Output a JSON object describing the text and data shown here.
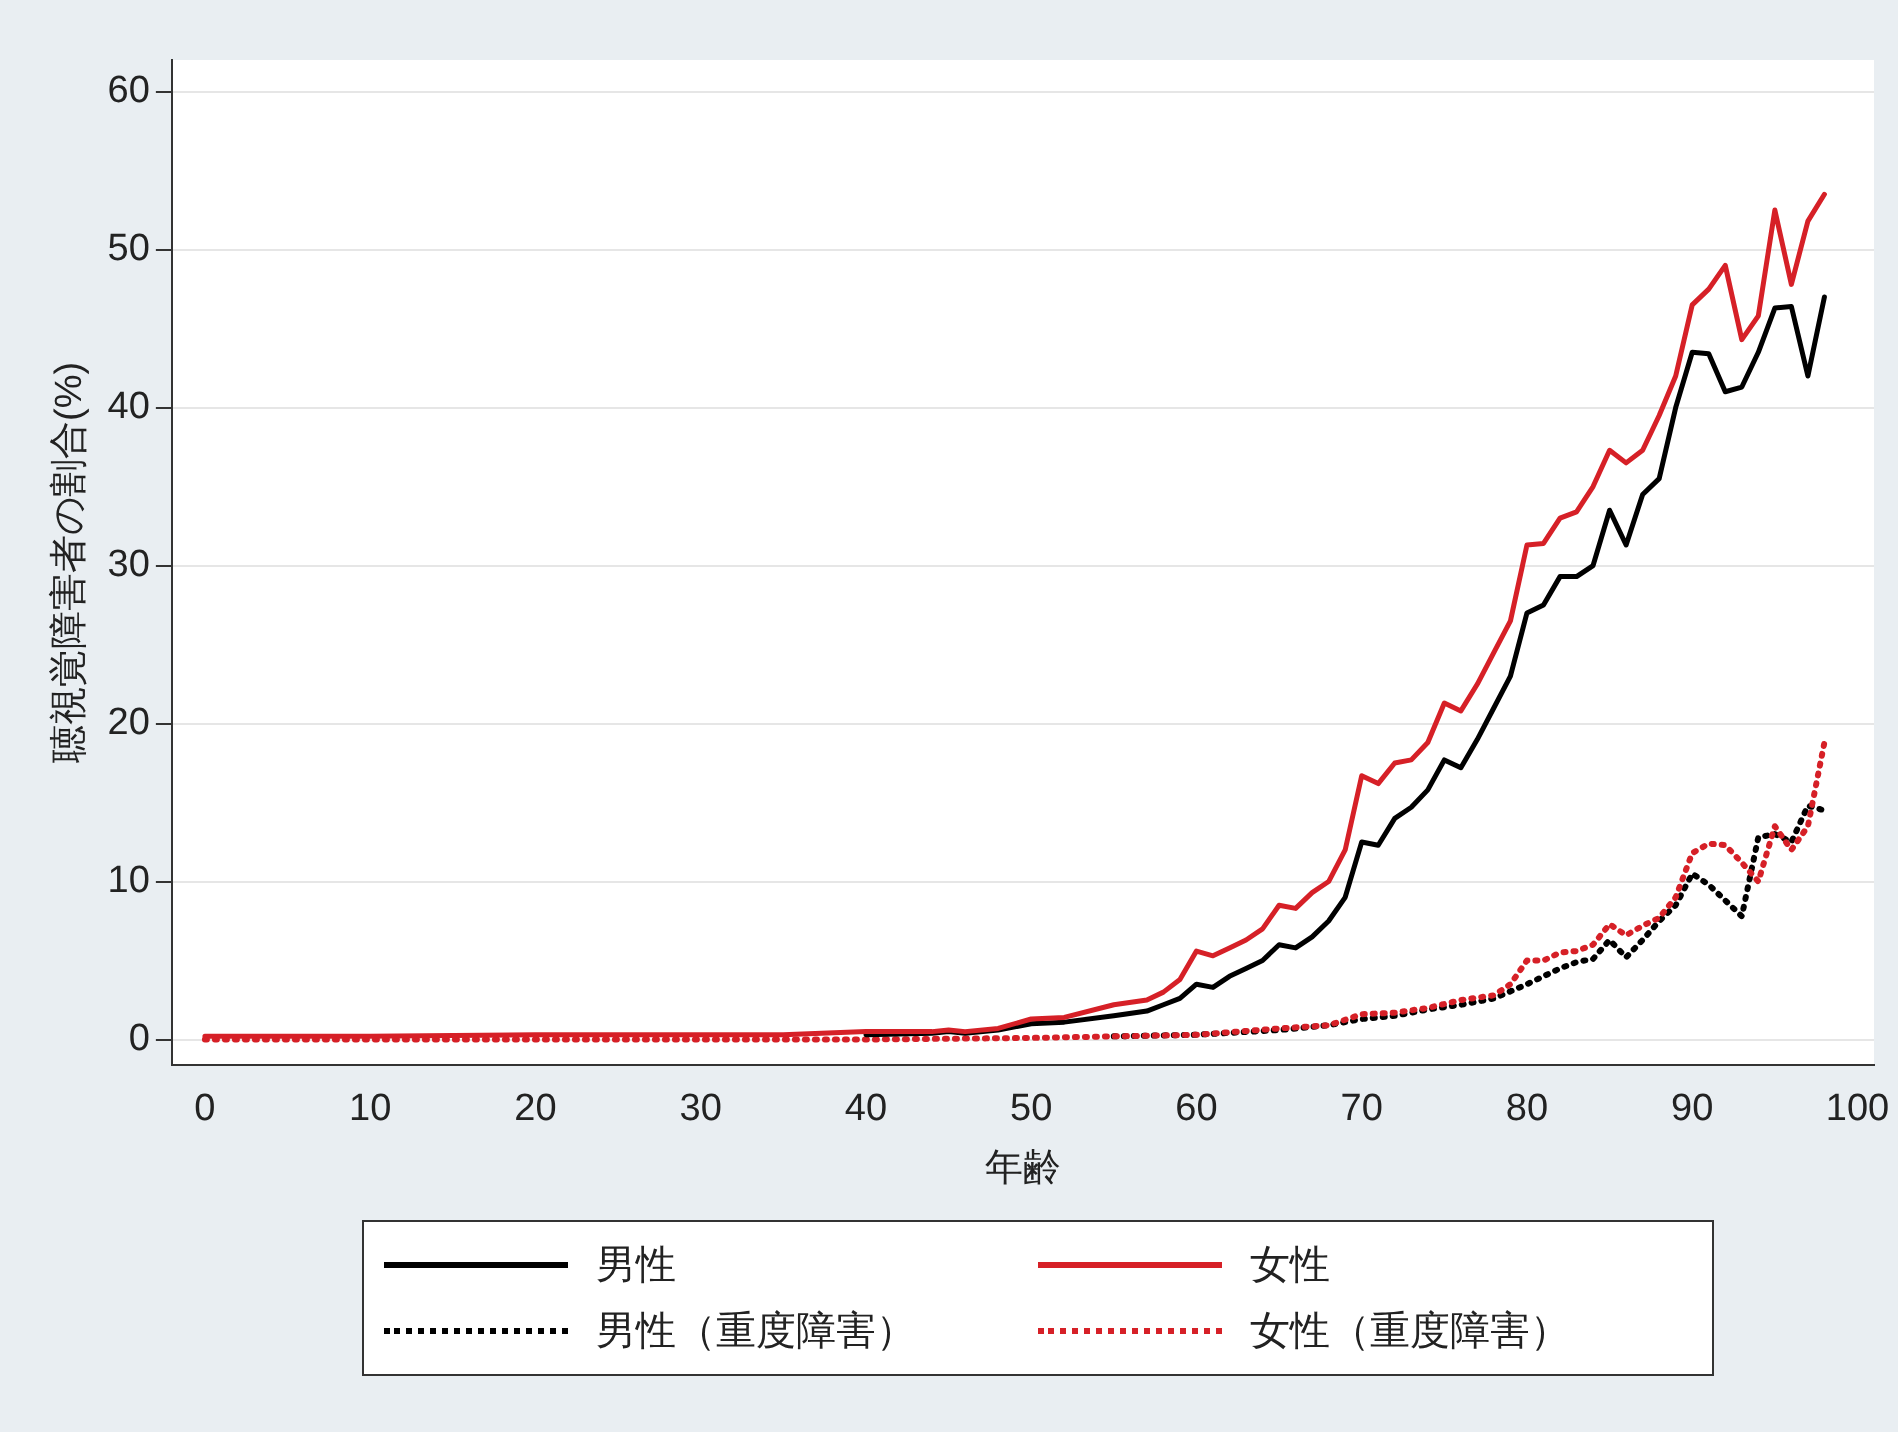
{
  "chart_data": {
    "type": "line",
    "xlabel": "年齢",
    "ylabel": "聴視覚障害者の割合(%)",
    "xlim": [
      -2,
      101
    ],
    "xticks": [
      0,
      10,
      20,
      30,
      40,
      50,
      60,
      70,
      80,
      90,
      100
    ],
    "ylim": [
      -1.6,
      62
    ],
    "yticks": [
      0,
      10,
      20,
      30,
      40,
      50,
      60
    ],
    "grid": "y",
    "legend": "bottom",
    "marker": "none",
    "series": [
      {
        "name": "男性",
        "color": "#000000",
        "line_style": "solid",
        "x": [
          40,
          44,
          45,
          46,
          48,
          50,
          52,
          55,
          57,
          58,
          59,
          60,
          61,
          62,
          63,
          64,
          65,
          66,
          67,
          68,
          69,
          70,
          71,
          72,
          73,
          74,
          75,
          76,
          77,
          78,
          79,
          80,
          81,
          82,
          83,
          84,
          85,
          86,
          87,
          88,
          89,
          90,
          91,
          92,
          93,
          94,
          95,
          96,
          97,
          98
        ],
        "values": [
          0.3,
          0.4,
          0.5,
          0.4,
          0.6,
          1.0,
          1.1,
          1.5,
          1.8,
          2.2,
          2.6,
          3.5,
          3.3,
          4,
          4.5,
          5,
          6,
          5.8,
          6.5,
          7.5,
          9,
          12.5,
          12.3,
          14,
          14.7,
          15.8,
          17.7,
          17.2,
          19,
          21,
          23,
          27,
          27.5,
          29.3,
          29.3,
          30,
          33.5,
          31.3,
          34.5,
          35.5,
          40,
          43.5,
          43.4,
          41,
          41.3,
          43.5,
          46.3,
          46.4,
          42,
          47
        ]
      },
      {
        "name": "女性",
        "color": "#d62027",
        "line_style": "solid",
        "x": [
          0,
          10,
          20,
          30,
          35,
          40,
          44,
          45,
          46,
          48,
          50,
          52,
          55,
          57,
          58,
          59,
          60,
          61,
          62,
          63,
          64,
          65,
          66,
          67,
          68,
          69,
          70,
          71,
          72,
          73,
          74,
          75,
          76,
          77,
          78,
          79,
          80,
          81,
          82,
          83,
          84,
          85,
          86,
          87,
          88,
          89,
          90,
          91,
          92,
          93,
          94,
          95,
          96,
          97,
          98
        ],
        "values": [
          0.2,
          0.2,
          0.3,
          0.3,
          0.3,
          0.5,
          0.5,
          0.6,
          0.5,
          0.7,
          1.3,
          1.4,
          2.2,
          2.5,
          3,
          3.8,
          5.6,
          5.3,
          5.8,
          6.3,
          7,
          8.5,
          8.3,
          9.3,
          10,
          12,
          16.7,
          16.2,
          17.5,
          17.7,
          18.8,
          21.3,
          20.8,
          22.5,
          24.5,
          26.5,
          31.3,
          31.4,
          33,
          33.4,
          35,
          37.3,
          36.5,
          37.3,
          39.5,
          42,
          46.5,
          47.5,
          49,
          44.3,
          45.8,
          52.5,
          47.8,
          51.8,
          53.5
        ]
      },
      {
        "name": "男性（重度障害）",
        "color": "#000000",
        "line_style": "dotted",
        "x": [
          55,
          60,
          65,
          68,
          70,
          72,
          74,
          76,
          78,
          80,
          81,
          82,
          83,
          84,
          85,
          86,
          87,
          88,
          89,
          90,
          91,
          92,
          93,
          94,
          95,
          96,
          97,
          98
        ],
        "values": [
          0.2,
          0.3,
          0.6,
          0.9,
          1.3,
          1.5,
          1.9,
          2.2,
          2.6,
          3.5,
          4,
          4.5,
          4.9,
          5.1,
          6.3,
          5.2,
          6.3,
          7.5,
          8.5,
          10.5,
          9.8,
          8.8,
          7.8,
          12.8,
          13,
          12.5,
          14.8,
          14.5
        ]
      },
      {
        "name": "女性（重度障害）",
        "color": "#d62027",
        "line_style": "dotted",
        "x": [
          0,
          20,
          40,
          50,
          55,
          60,
          65,
          68,
          70,
          72,
          74,
          76,
          78,
          79,
          80,
          81,
          82,
          83,
          84,
          85,
          86,
          87,
          88,
          89,
          90,
          91,
          92,
          93,
          94,
          95,
          96,
          97,
          98
        ],
        "values": [
          0,
          0,
          0,
          0.1,
          0.2,
          0.3,
          0.7,
          0.9,
          1.6,
          1.7,
          2,
          2.5,
          2.8,
          3.5,
          5,
          5,
          5.5,
          5.6,
          6,
          7.3,
          6.6,
          7.2,
          7.7,
          9,
          11.8,
          12.4,
          12.3,
          11.2,
          10,
          13.5,
          12,
          13.5,
          18.8
        ]
      }
    ]
  }
}
